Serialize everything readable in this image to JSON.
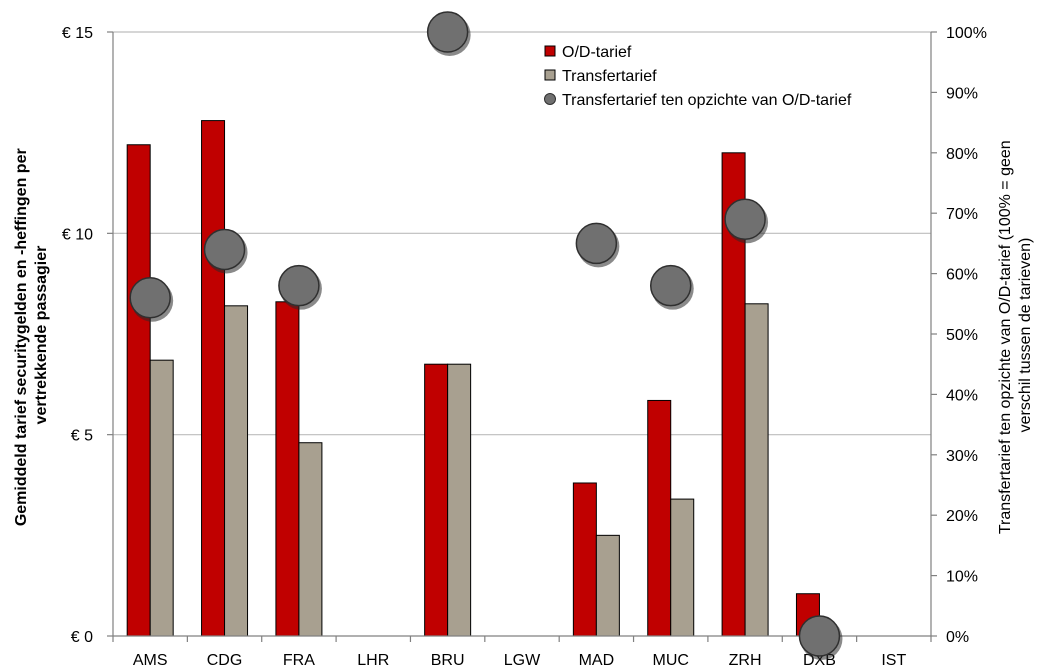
{
  "chart_data": {
    "type": "bar",
    "categories": [
      "AMS",
      "CDG",
      "FRA",
      "LHR",
      "BRU",
      "LGW",
      "MAD",
      "MUC",
      "ZRH",
      "DXB",
      "IST"
    ],
    "series": [
      {
        "name": "O/D-tarief",
        "kind": "bar",
        "axis": "left",
        "color": "#c00000",
        "values": [
          12.2,
          12.8,
          8.3,
          null,
          6.75,
          null,
          3.8,
          5.85,
          12.0,
          1.05,
          null
        ]
      },
      {
        "name": "Transfertarief",
        "kind": "bar",
        "axis": "left",
        "color": "#a8a090",
        "values": [
          6.85,
          8.2,
          4.8,
          null,
          6.75,
          null,
          2.5,
          3.4,
          8.25,
          null,
          null
        ]
      },
      {
        "name": "Transfertarief ten opzichte van O/D-tarief",
        "kind": "point",
        "axis": "right",
        "color": "#707070",
        "values": [
          56,
          64,
          58,
          null,
          100,
          null,
          65,
          58,
          69,
          0,
          null
        ]
      }
    ],
    "left_axis": {
      "label_line1": "Gemiddeld tarief securitygelden en -heffingen per",
      "label_line2": "vertrekkende passagier",
      "ylim": [
        0,
        15
      ],
      "ticks": [
        0,
        5,
        10,
        15
      ],
      "tick_labels": [
        "€ 0",
        "€ 5",
        "€ 10",
        "€ 15"
      ]
    },
    "right_axis": {
      "label_line1": "Transfertarief ten opzichte van O/D-tarief (100% = geen",
      "label_line2": "verschil tussen de tarieven)",
      "ylim": [
        0,
        100
      ],
      "ticks": [
        0,
        10,
        20,
        30,
        40,
        50,
        60,
        70,
        80,
        90,
        100
      ],
      "tick_labels": [
        "0%",
        "10%",
        "20%",
        "30%",
        "40%",
        "50%",
        "60%",
        "70%",
        "80%",
        "90%",
        "100%"
      ]
    },
    "grid": true,
    "legend_position": "top-right"
  }
}
